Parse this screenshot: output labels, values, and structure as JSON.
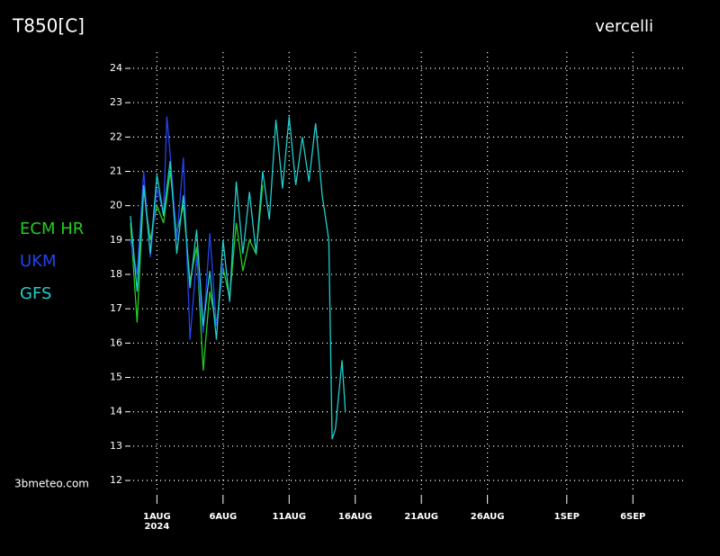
{
  "chart_data": {
    "type": "line",
    "title": "T850[C]",
    "location": "vercelli",
    "watermark": "3bmeteo.com",
    "x_sublabel": "2024",
    "xlim": [
      -2,
      40
    ],
    "ylim": [
      11.7,
      24.3
    ],
    "yticks": [
      12,
      13,
      14,
      15,
      16,
      17,
      18,
      19,
      20,
      21,
      22,
      23,
      24
    ],
    "xticks": [
      {
        "value": 0,
        "label": "1AUG"
      },
      {
        "value": 5,
        "label": "6AUG"
      },
      {
        "value": 10,
        "label": "11AUG"
      },
      {
        "value": 15,
        "label": "16AUG"
      },
      {
        "value": 20,
        "label": "21AUG"
      },
      {
        "value": 25,
        "label": "26AUG"
      },
      {
        "value": 31,
        "label": "1SEP"
      },
      {
        "value": 36,
        "label": "6SEP"
      }
    ],
    "grid": true,
    "series": [
      {
        "name": "ECM HR",
        "color": "#22cc22",
        "x": [
          -2,
          -1.5,
          -1,
          -0.5,
          0,
          0.5,
          1,
          1.5,
          2,
          2.5,
          3,
          3.5,
          4,
          4.5,
          5,
          5.5,
          6,
          6.5,
          7,
          7.5,
          8
        ],
        "values": [
          19.5,
          16.6,
          20.5,
          19.0,
          20.0,
          19.5,
          21.0,
          19.2,
          20.0,
          17.8,
          18.8,
          15.2,
          17.5,
          16.5,
          18.2,
          17.3,
          19.5,
          18.1,
          19.0,
          18.6,
          20.6
        ]
      },
      {
        "name": "UKM",
        "color": "#2244ee",
        "x": [
          -2,
          -1.5,
          -1,
          -0.5,
          0,
          0.5,
          0.75,
          1,
          1.5,
          2,
          2.5,
          3,
          3.5,
          4,
          4.5,
          5
        ],
        "values": [
          19.0,
          18.0,
          21.0,
          18.5,
          20.5,
          19.8,
          22.6,
          21.5,
          19.0,
          21.4,
          16.1,
          18.5,
          16.3,
          19.2,
          16.5,
          18.3
        ]
      },
      {
        "name": "GFS",
        "color": "#22cccc",
        "x": [
          -2,
          -1.5,
          -1,
          -0.5,
          0,
          0.5,
          1,
          1.5,
          2,
          2.5,
          3,
          3.5,
          4,
          4.5,
          5,
          5.5,
          6,
          6.5,
          7,
          7.5,
          8,
          8.5,
          9,
          9.5,
          10,
          10.5,
          11,
          11.5,
          12,
          12.5,
          13,
          13.25,
          13.5,
          14,
          14.25
        ],
        "values": [
          19.7,
          17.5,
          20.6,
          18.6,
          20.9,
          19.7,
          21.3,
          18.6,
          20.3,
          17.6,
          19.3,
          16.5,
          18.1,
          16.1,
          19.0,
          17.2,
          20.7,
          18.6,
          20.4,
          18.6,
          21.0,
          19.6,
          22.5,
          20.5,
          22.6,
          20.6,
          22.0,
          20.7,
          22.4,
          20.3,
          19.0,
          13.2,
          13.5,
          15.5,
          14.0
        ]
      }
    ]
  }
}
